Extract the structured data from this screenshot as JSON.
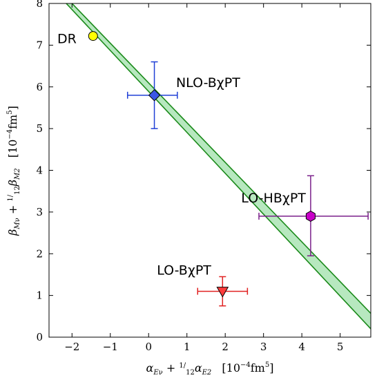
{
  "chart_data": {
    "type": "scatter",
    "xlim": [
      -2.6,
      5.8
    ],
    "ylim": [
      0,
      8
    ],
    "x_ticks": [
      -2,
      -1,
      0,
      1,
      2,
      3,
      4,
      5
    ],
    "y_ticks": [
      0,
      1,
      2,
      3,
      4,
      5,
      6,
      7,
      8
    ],
    "x_tick_labels": [
      "−2",
      "−1",
      "0",
      "1",
      "2",
      "3",
      "4",
      "5"
    ],
    "y_tick_labels": [
      "0",
      "1",
      "2",
      "3",
      "4",
      "5",
      "6",
      "7",
      "8"
    ],
    "xlabel": {
      "main": "α",
      "main_sub": "E",
      "main_sub2": "ν",
      "plus": " + ",
      "frac_num": "1",
      "frac_den": "12",
      "second": "α",
      "second_sub": "E2",
      "units_pre": "[10",
      "units_exp": "−4",
      "units_mid": "fm",
      "units_exp2": "5",
      "units_post": "]"
    },
    "ylabel": {
      "main": "β",
      "main_sub": "M",
      "main_sub2": "ν",
      "plus": " + ",
      "frac_num": "1",
      "frac_den": "12",
      "second": "β",
      "second_sub": "M2",
      "units_pre": "[10",
      "units_exp": "−4",
      "units_mid": "fm",
      "units_exp2": "5",
      "units_post": "]"
    },
    "band": {
      "color": "#b7e8bf",
      "edge_color": "#1a8a1a",
      "upper": {
        "x1": -2.0,
        "y1": 8.0,
        "x2": 5.8,
        "y2": 0.57
      },
      "lower": {
        "x1": -2.15,
        "y1": 8.0,
        "x2": 5.8,
        "y2": 0.2
      }
    },
    "points": [
      {
        "label": "DR",
        "x": -1.45,
        "y": 7.22,
        "marker": "circle",
        "color": "#ffff00",
        "xerr": null,
        "yerr": null,
        "error_color": null
      },
      {
        "label": "NLO-BχPT",
        "x": 0.15,
        "y": 5.8,
        "marker": "diamond",
        "color": "#3b57e6",
        "xerr": [
          0.7,
          0.6
        ],
        "yerr": [
          0.8,
          0.8
        ],
        "error_color": "#1f3fd6"
      },
      {
        "label": "LO-HBχPT",
        "x": 4.23,
        "y": 2.9,
        "marker": "hexagon",
        "color": "#c800c8",
        "xerr": [
          1.35,
          1.5
        ],
        "yerr": [
          0.95,
          0.97
        ],
        "error_color": "#7a1f8a"
      },
      {
        "label": "LO-BχPT",
        "x": 1.93,
        "y": 1.1,
        "marker": "triangle-down",
        "color": "#ff3b3b",
        "xerr": [
          0.65,
          0.65
        ],
        "yerr": [
          0.35,
          0.35
        ],
        "error_color": "#e02020"
      }
    ],
    "annotations": [
      {
        "text": "DR",
        "x": -2.6,
        "y": 7.05
      },
      {
        "text": "NLO-BχPT",
        "x": 0.5,
        "y": 6.0
      },
      {
        "text": "LO-HBχPT",
        "x": 2.2,
        "y": 3.23
      },
      {
        "text": "LO-BχPT",
        "x": 0.0,
        "y": 1.5
      }
    ],
    "grid": false
  }
}
